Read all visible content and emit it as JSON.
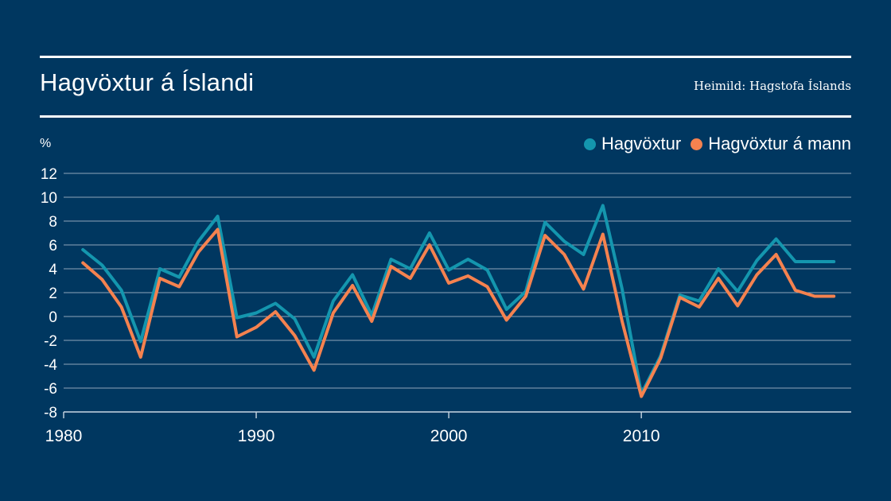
{
  "header": {
    "title": "Hagvöxtur á Íslandi",
    "source": "Heimild: Hagstofa Íslands"
  },
  "colors": {
    "background": "#003760",
    "series_gdp": "#1496ae",
    "series_per_capita": "#f5824f",
    "grid": "#8fa6ba"
  },
  "chart_data": {
    "type": "line",
    "title": "Hagvöxtur á Íslandi",
    "ylabel": "%",
    "xlabel": "",
    "ylim": [
      -8,
      12
    ],
    "xlim": [
      1980,
      2020.9
    ],
    "yticks": [
      -8,
      -6,
      -4,
      -2,
      0,
      2,
      4,
      6,
      8,
      10,
      12
    ],
    "xticks": [
      1980,
      1990,
      2000,
      2010
    ],
    "grid": "horizontal",
    "legend": "top-right",
    "x": [
      1981,
      1982,
      1983,
      1984,
      1985,
      1986,
      1987,
      1988,
      1989,
      1990,
      1991,
      1992,
      1993,
      1994,
      1995,
      1996,
      1997,
      1998,
      1999,
      2000,
      2001,
      2002,
      2003,
      2004,
      2005,
      2006,
      2007,
      2008,
      2009,
      2010,
      2011,
      2012,
      2013,
      2014,
      2015,
      2016,
      2017,
      2018,
      2019,
      2020
    ],
    "series": [
      {
        "name": "Hagvöxtur",
        "values": [
          5.6,
          4.3,
          2.2,
          -2.1,
          4.0,
          3.3,
          6.3,
          8.4,
          -0.1,
          0.3,
          1.1,
          -0.2,
          -3.4,
          1.3,
          3.5,
          0.1,
          4.8,
          4.0,
          7.0,
          3.9,
          4.8,
          3.9,
          0.6,
          2.1,
          7.9,
          6.3,
          5.2,
          9.3,
          2.3,
          -6.5,
          -3.3,
          1.8,
          1.3,
          4.0,
          2.1,
          4.7,
          6.5,
          4.6,
          4.6,
          4.6
        ],
        "color": "#1496ae"
      },
      {
        "name": "Hagvöxtur á mann",
        "values": [
          4.5,
          3.1,
          0.8,
          -3.4,
          3.2,
          2.5,
          5.4,
          7.3,
          -1.7,
          -0.9,
          0.4,
          -1.6,
          -4.5,
          0.3,
          2.6,
          -0.4,
          4.2,
          3.2,
          6.0,
          2.8,
          3.4,
          2.5,
          -0.3,
          1.7,
          6.8,
          5.2,
          2.3,
          6.9,
          -0.4,
          -6.7,
          -3.5,
          1.6,
          0.8,
          3.2,
          0.9,
          3.5,
          5.2,
          2.2,
          1.7,
          1.7
        ]
      }
    ]
  }
}
